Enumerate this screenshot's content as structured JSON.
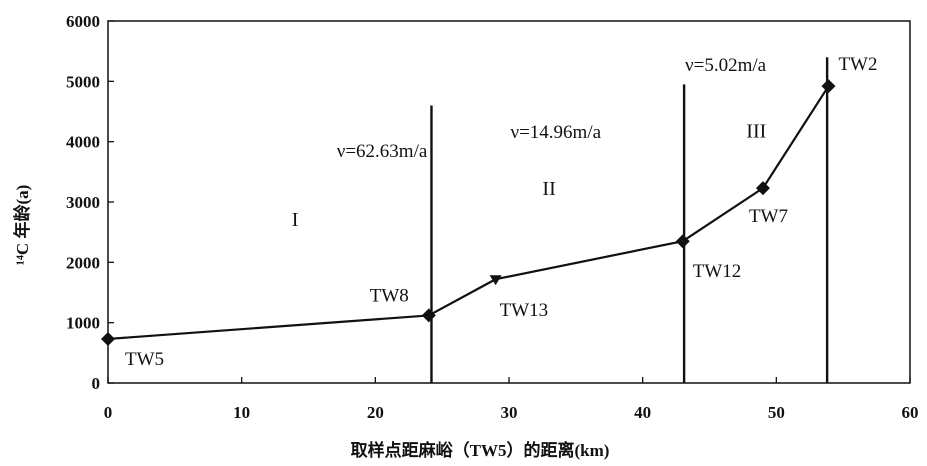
{
  "chart_data": {
    "type": "line",
    "xlabel": "取样点距麻峪（TW5）的距离(km)",
    "ylabel": "¹⁴C 年龄(a)",
    "xlim": [
      0,
      60
    ],
    "ylim": [
      0,
      6000
    ],
    "xticks": [
      0,
      10,
      20,
      30,
      40,
      50,
      60
    ],
    "yticks": [
      0,
      1000,
      2000,
      3000,
      4000,
      5000,
      6000
    ],
    "grid": false,
    "series": [
      {
        "points": [
          {
            "label": "TW5",
            "x": 0,
            "y": 730,
            "marker": "diamond"
          },
          {
            "label": "TW8",
            "x": 24,
            "y": 1120,
            "marker": "diamond"
          },
          {
            "label": "TW13",
            "x": 29,
            "y": 1720,
            "marker": "triangle"
          },
          {
            "label": "TW12",
            "x": 43,
            "y": 2350,
            "marker": "diamond"
          },
          {
            "label": "TW7",
            "x": 49,
            "y": 3230,
            "marker": "diamond"
          },
          {
            "label": "TW2",
            "x": 53.9,
            "y": 4920,
            "marker": "diamond"
          }
        ]
      }
    ],
    "boundaries": [
      {
        "x": 24.2,
        "y_top": 4600
      },
      {
        "x": 43.1,
        "y_top": 4950
      },
      {
        "x": 53.8,
        "y_top": 5400
      }
    ],
    "zones": [
      {
        "label": "I",
        "velocity": "ν=62.63m/a"
      },
      {
        "label": "II",
        "velocity": "ν=14.96m/a"
      },
      {
        "label": "III",
        "velocity": "ν=5.02m/a"
      }
    ]
  }
}
